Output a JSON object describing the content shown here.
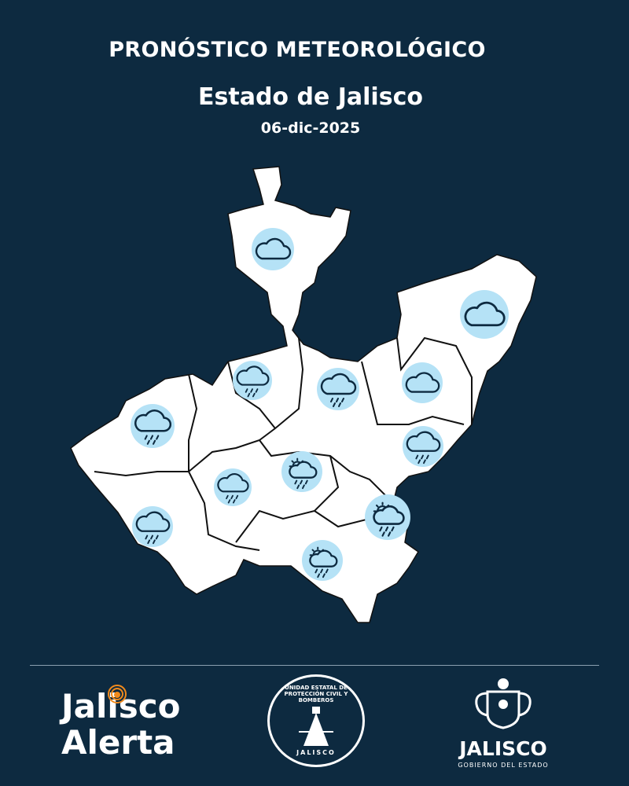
{
  "header": {
    "title": "PRONÓSTICO METEOROLÓGICO",
    "subtitle": "Estado de Jalisco",
    "date": "06-dic-2025"
  },
  "map": {
    "region": "Jalisco",
    "colors": {
      "background": "#0d2a40",
      "land": "#ffffff",
      "icon_circle": "#b5e2f6",
      "icon_stroke": "#0d2a40"
    },
    "forecast_icons": [
      "cloudy-icon",
      "cloudy-icon",
      "rain-icon",
      "rain-icon",
      "cloudy-icon",
      "rain-icon",
      "rain-icon",
      "partly-sunny-rain-icon",
      "rain-icon",
      "partly-sunny-rain-icon",
      "rain-icon",
      "partly-sunny-rain-icon"
    ]
  },
  "footer": {
    "logo1_line1": "Jalisco",
    "logo1_line2": "Alerta",
    "seal_text": "UNIDAD ESTATAL DE PROTECCIÓN CIVIL Y BOMBEROS",
    "seal_bottom": "JALISCO",
    "gov_name": "JALISCO",
    "gov_sub": "GOBIERNO DEL ESTADO"
  }
}
